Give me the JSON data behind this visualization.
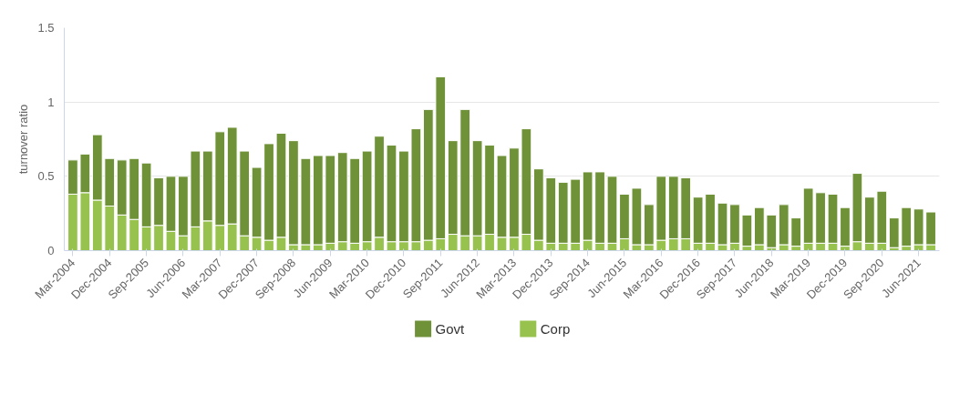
{
  "chart_data": {
    "type": "bar",
    "stacked": true,
    "ylabel": "turnover ratio",
    "categories": [
      "Mar-2004",
      null,
      null,
      "Dec-2004",
      null,
      null,
      "Sep-2005",
      null,
      null,
      "Jun-2006",
      null,
      null,
      "Mar-2007",
      null,
      null,
      "Dec-2007",
      null,
      null,
      "Sep-2008",
      null,
      null,
      "Jun-2009",
      null,
      null,
      "Mar-2010",
      null,
      null,
      "Dec-2010",
      null,
      null,
      "Sep-2011",
      null,
      null,
      "Jun-2012",
      null,
      null,
      "Mar-2013",
      null,
      null,
      "Dec-2013",
      null,
      null,
      "Sep-2014",
      null,
      null,
      "Jun-2015",
      null,
      null,
      "Mar-2016",
      null,
      null,
      "Dec-2016",
      null,
      null,
      "Sep-2017",
      null,
      null,
      "Jun-2018",
      null,
      null,
      "Mar-2019",
      null,
      null,
      "Dec-2019",
      null,
      null,
      "Sep-2020",
      null,
      null,
      "Jun-2021",
      null
    ],
    "series": [
      {
        "name": "Corp",
        "color": "#98c24e",
        "values": [
          0.38,
          0.39,
          0.34,
          0.3,
          0.24,
          0.21,
          0.16,
          0.17,
          0.13,
          0.1,
          0.16,
          0.2,
          0.17,
          0.18,
          0.1,
          0.09,
          0.07,
          0.09,
          0.04,
          0.04,
          0.04,
          0.05,
          0.06,
          0.05,
          0.06,
          0.09,
          0.06,
          0.06,
          0.06,
          0.07,
          0.08,
          0.11,
          0.1,
          0.1,
          0.11,
          0.09,
          0.09,
          0.11,
          0.07,
          0.05,
          0.05,
          0.05,
          0.07,
          0.05,
          0.05,
          0.08,
          0.04,
          0.04,
          0.07,
          0.08,
          0.08,
          0.05,
          0.05,
          0.04,
          0.05,
          0.03,
          0.04,
          0.02,
          0.04,
          0.03,
          0.05,
          0.05,
          0.05,
          0.03,
          0.06,
          0.05,
          0.05,
          0.02,
          0.03,
          0.04,
          0.04
        ]
      },
      {
        "name": "Govt",
        "color": "#6f9238",
        "values": [
          0.23,
          0.26,
          0.44,
          0.32,
          0.37,
          0.41,
          0.43,
          0.32,
          0.37,
          0.4,
          0.51,
          0.47,
          0.63,
          0.65,
          0.57,
          0.47,
          0.65,
          0.7,
          0.7,
          0.58,
          0.6,
          0.59,
          0.6,
          0.57,
          0.61,
          0.68,
          0.65,
          0.61,
          0.76,
          0.88,
          1.09,
          0.63,
          0.85,
          0.64,
          0.6,
          0.55,
          0.6,
          0.71,
          0.48,
          0.44,
          0.41,
          0.43,
          0.46,
          0.48,
          0.45,
          0.3,
          0.38,
          0.27,
          0.43,
          0.42,
          0.41,
          0.31,
          0.33,
          0.28,
          0.26,
          0.21,
          0.25,
          0.22,
          0.27,
          0.19,
          0.37,
          0.34,
          0.33,
          0.26,
          0.46,
          0.31,
          0.35,
          0.2,
          0.26,
          0.24,
          0.22
        ]
      }
    ],
    "ylim": [
      0,
      1.5
    ],
    "yticks": [
      0,
      {
        "value": 0.5,
        "label": "0.5"
      },
      1,
      1.5
    ],
    "grid": "y",
    "legend": "bottom"
  }
}
